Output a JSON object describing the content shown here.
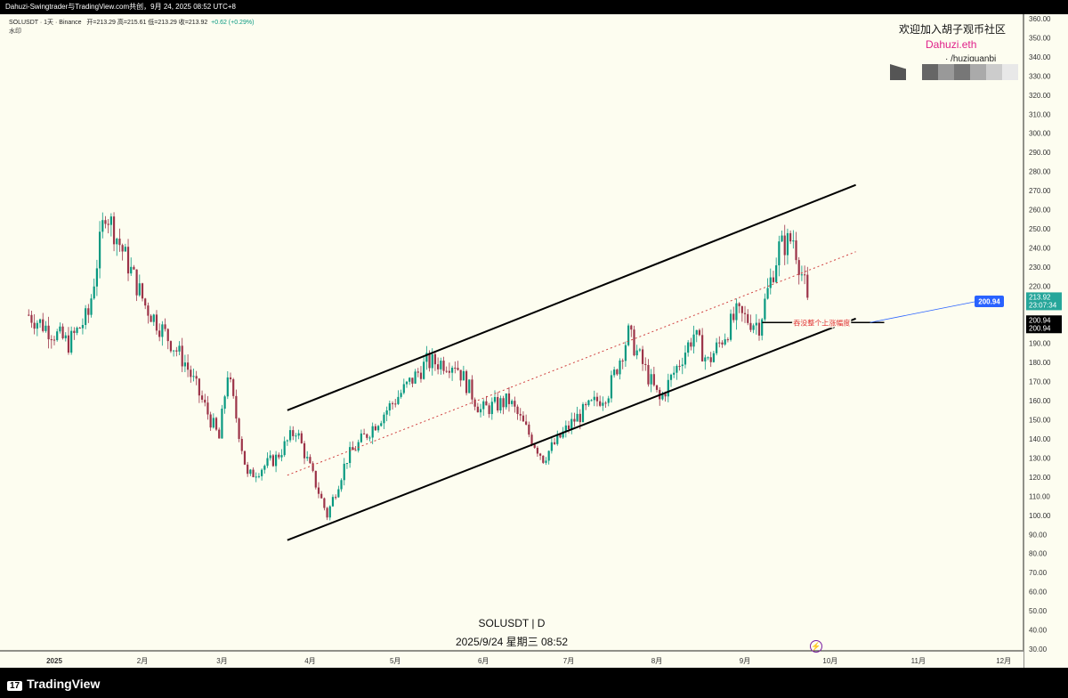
{
  "header": {
    "publisher_line": "Dahuzi-Swingtrader与TradingView.com共创，9月 24, 2025 08:52 UTC+8",
    "symbol_info": "SOLUSDT · 1天 · Binance",
    "ohlc": "开=213.29  高=215.61  低=213.29  收=213.92",
    "change": "+0.62 (+0.29%)",
    "watermark_label": "水印"
  },
  "promo": {
    "line1": "欢迎加入胡子观币社区",
    "line2": "Dahuzi.eth",
    "line3": "· /huziguanbi"
  },
  "center_label": {
    "symbol": "SOLUSDT | D",
    "datetime": "2025/9/24 星期三 08:52"
  },
  "footer": {
    "brand": "TradingView",
    "logo_mark": "17"
  },
  "chart_data": {
    "type": "candlestick",
    "symbol": "SOLUSDT",
    "interval": "D",
    "exchange": "Binance",
    "y_axis": {
      "ticks": [
        360,
        350,
        340,
        330,
        320,
        310,
        300,
        290,
        280,
        270,
        260,
        250,
        240,
        230,
        220,
        210,
        200,
        190,
        180,
        170,
        160,
        150,
        140,
        130,
        120,
        110,
        100,
        90,
        80,
        70,
        60,
        50,
        40,
        30
      ],
      "ylim": [
        30,
        360
      ]
    },
    "x_axis": {
      "labels": [
        "2025",
        "2月",
        "3月",
        "4月",
        "5月",
        "6月",
        "7月",
        "8月",
        "9月",
        "10月",
        "11月",
        "12月"
      ]
    },
    "approx_price_path": [
      {
        "date": "2024-12-23",
        "price": 205
      },
      {
        "date": "2025-01-06",
        "price": 190
      },
      {
        "date": "2025-01-13",
        "price": 205
      },
      {
        "date": "2025-01-19",
        "price": 260
      },
      {
        "date": "2025-01-26",
        "price": 235
      },
      {
        "date": "2025-02-02",
        "price": 210
      },
      {
        "date": "2025-02-16",
        "price": 180
      },
      {
        "date": "2025-02-28",
        "price": 140
      },
      {
        "date": "2025-03-03",
        "price": 175
      },
      {
        "date": "2025-03-10",
        "price": 120
      },
      {
        "date": "2025-03-20",
        "price": 130
      },
      {
        "date": "2025-03-27",
        "price": 145
      },
      {
        "date": "2025-04-07",
        "price": 100
      },
      {
        "date": "2025-04-14",
        "price": 130
      },
      {
        "date": "2025-04-25",
        "price": 150
      },
      {
        "date": "2025-05-12",
        "price": 180
      },
      {
        "date": "2025-05-22",
        "price": 180
      },
      {
        "date": "2025-05-31",
        "price": 155
      },
      {
        "date": "2025-06-10",
        "price": 160
      },
      {
        "date": "2025-06-22",
        "price": 130
      },
      {
        "date": "2025-07-03",
        "price": 150
      },
      {
        "date": "2025-07-15",
        "price": 165
      },
      {
        "date": "2025-07-22",
        "price": 195
      },
      {
        "date": "2025-08-02",
        "price": 160
      },
      {
        "date": "2025-08-14",
        "price": 195
      },
      {
        "date": "2025-08-19",
        "price": 180
      },
      {
        "date": "2025-08-29",
        "price": 205
      },
      {
        "date": "2025-09-06",
        "price": 200
      },
      {
        "date": "2025-09-13",
        "price": 240
      },
      {
        "date": "2025-09-18",
        "price": 245
      },
      {
        "date": "2025-09-23",
        "price": 214
      }
    ],
    "last_price": "213.92",
    "countdown": "23:07:34",
    "level_label": "200.94",
    "level_price": 200.94,
    "annotation": "吞没整个上涨幅度",
    "channel": {
      "upper": [
        {
          "date": "2025-03-24",
          "price": 155
        },
        {
          "date": "2025-10-10",
          "price": 273
        }
      ],
      "lower": [
        {
          "date": "2025-03-24",
          "price": 87
        },
        {
          "date": "2025-10-10",
          "price": 203
        }
      ],
      "mid_dotted": [
        {
          "date": "2025-03-24",
          "price": 121
        },
        {
          "date": "2025-10-10",
          "price": 238
        }
      ]
    },
    "colors": {
      "up": "#089981",
      "down": "#9c3348",
      "background": "#fdfdf0",
      "last_price_badge": "#26a69a",
      "level_badge": "#2962ff",
      "annotation": "#e03030",
      "midline": "#d04040"
    }
  }
}
